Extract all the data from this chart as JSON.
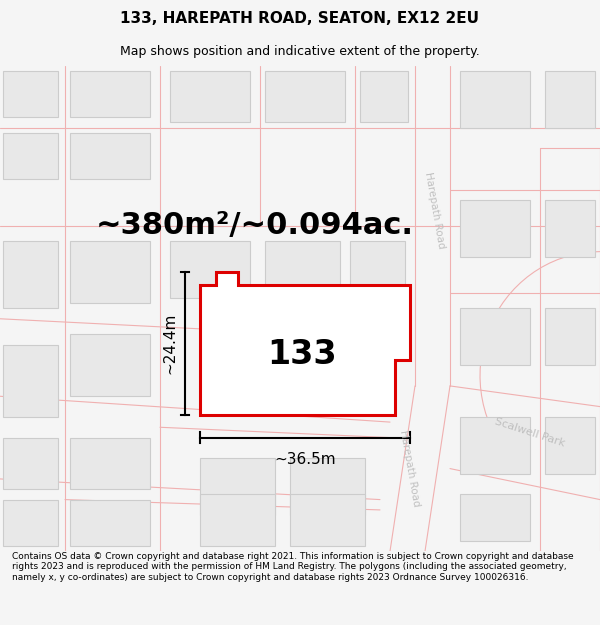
{
  "title": "133, HAREPATH ROAD, SEATON, EX12 2EU",
  "subtitle": "Map shows position and indicative extent of the property.",
  "footer": "Contains OS data © Crown copyright and database right 2021. This information is subject to Crown copyright and database rights 2023 and is reproduced with the permission of HM Land Registry. The polygons (including the associated geometry, namely x, y co-ordinates) are subject to Crown copyright and database rights 2023 Ordnance Survey 100026316.",
  "area_label": "~380m²/~0.094ac.",
  "number_label": "133",
  "width_label": "~36.5m",
  "height_label": "~24.4m",
  "bg_color": "#f5f5f5",
  "map_bg": "#ffffff",
  "property_color": "#dd0000",
  "road_line_color": "#f0b0b0",
  "building_fill": "#e8e8e8",
  "building_edge": "#cccccc",
  "road_label_color": "#c0c0c0",
  "title_fontsize": 11,
  "subtitle_fontsize": 9,
  "footer_fontsize": 6.5,
  "area_fontsize": 22,
  "number_fontsize": 24,
  "dim_fontsize": 11
}
